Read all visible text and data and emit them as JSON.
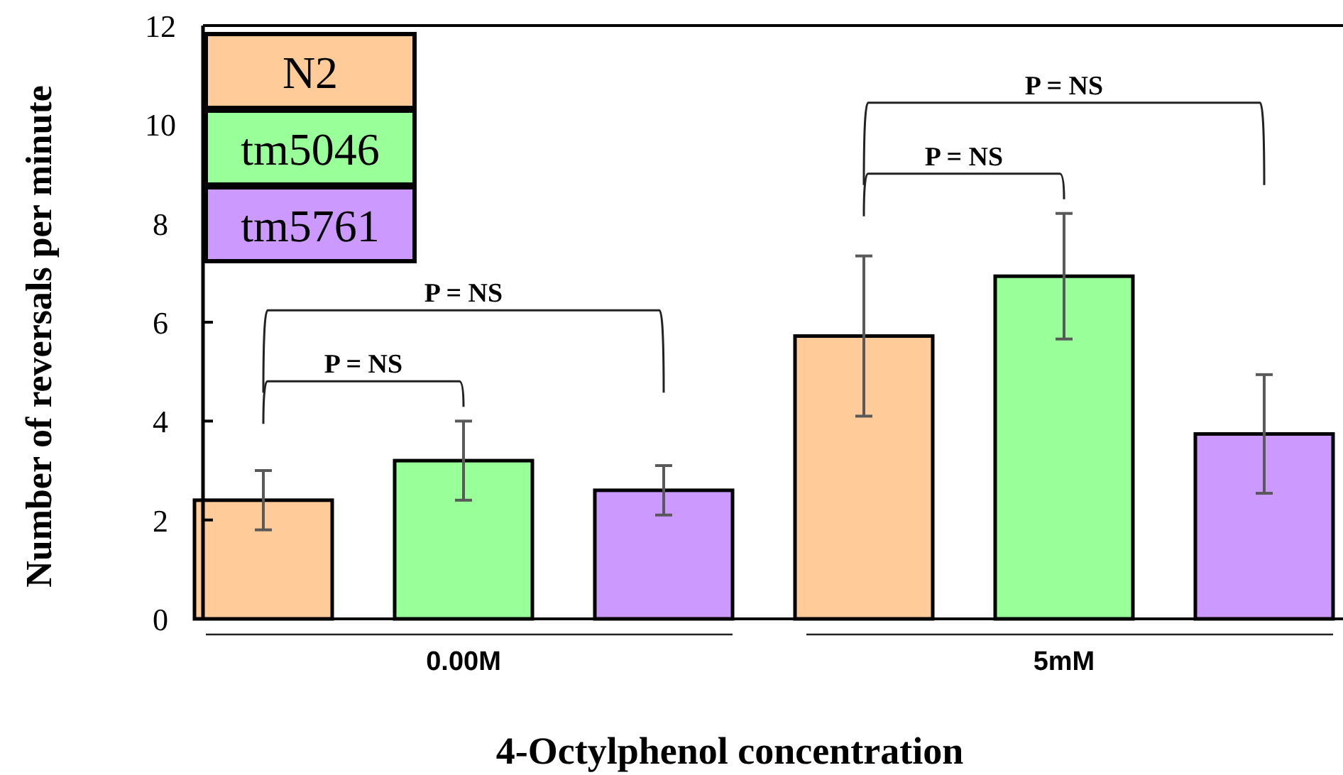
{
  "chart_data": {
    "type": "bar",
    "xlabel": "4-Octylphenol concentration",
    "ylabel": "Number of reversals per minute",
    "categories": [
      "0.00M",
      "5mM"
    ],
    "series": [
      {
        "name": "N2",
        "color": "#ffcc99",
        "values": [
          2.4,
          5.72
        ],
        "errors": [
          0.6,
          1.62
        ]
      },
      {
        "name": "tm5046",
        "color": "#99ff99",
        "values": [
          3.2,
          6.93
        ],
        "errors": [
          0.8,
          1.27
        ]
      },
      {
        "name": "tm5761",
        "color": "#cc99ff",
        "values": [
          2.6,
          3.74
        ],
        "errors": [
          0.5,
          1.2
        ]
      }
    ],
    "ylim": [
      0,
      12
    ],
    "yticks": [
      0,
      2,
      4,
      6,
      8,
      10,
      12
    ],
    "grid": false,
    "legend": "top left",
    "annotations": [
      "P = NS",
      "P = NS",
      "P = NS",
      "P = NS"
    ]
  }
}
